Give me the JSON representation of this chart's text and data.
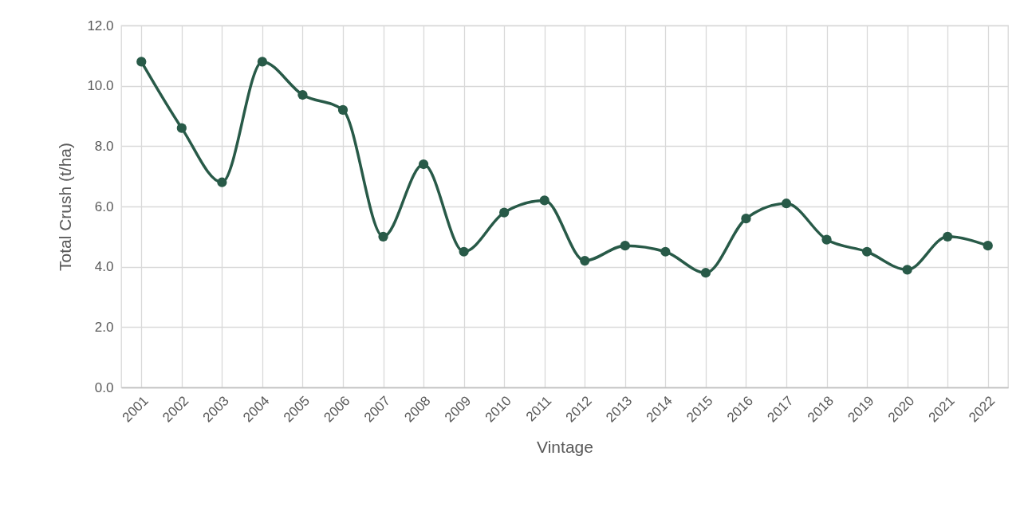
{
  "chart_data": {
    "type": "line",
    "xlabel": "Vintage",
    "ylabel": "Total Crush (t/ha)",
    "categories": [
      "2001",
      "2002",
      "2003",
      "2004",
      "2005",
      "2006",
      "2007",
      "2008",
      "2009",
      "2010",
      "2011",
      "2012",
      "2013",
      "2014",
      "2015",
      "2016",
      "2017",
      "2018",
      "2019",
      "2020",
      "2021",
      "2022"
    ],
    "series": [
      {
        "color": "#285a48",
        "values": [
          10.8,
          8.6,
          6.8,
          10.8,
          9.7,
          9.2,
          5.0,
          7.4,
          4.5,
          5.8,
          6.2,
          4.2,
          4.7,
          4.5,
          3.8,
          5.6,
          6.1,
          4.9,
          4.5,
          3.9,
          5.0,
          4.7
        ]
      }
    ],
    "ylim": [
      0,
      12
    ],
    "yticks": [
      {
        "value": 0,
        "label": "0.0"
      },
      {
        "value": 2,
        "label": "2.0"
      },
      {
        "value": 4,
        "label": "4.0"
      },
      {
        "value": 6,
        "label": "6.0"
      },
      {
        "value": 8,
        "label": "8.0"
      },
      {
        "value": 10,
        "label": "10.0"
      },
      {
        "value": 12,
        "label": "12.0"
      }
    ],
    "grid": true,
    "marker": "circle",
    "legend": false
  }
}
